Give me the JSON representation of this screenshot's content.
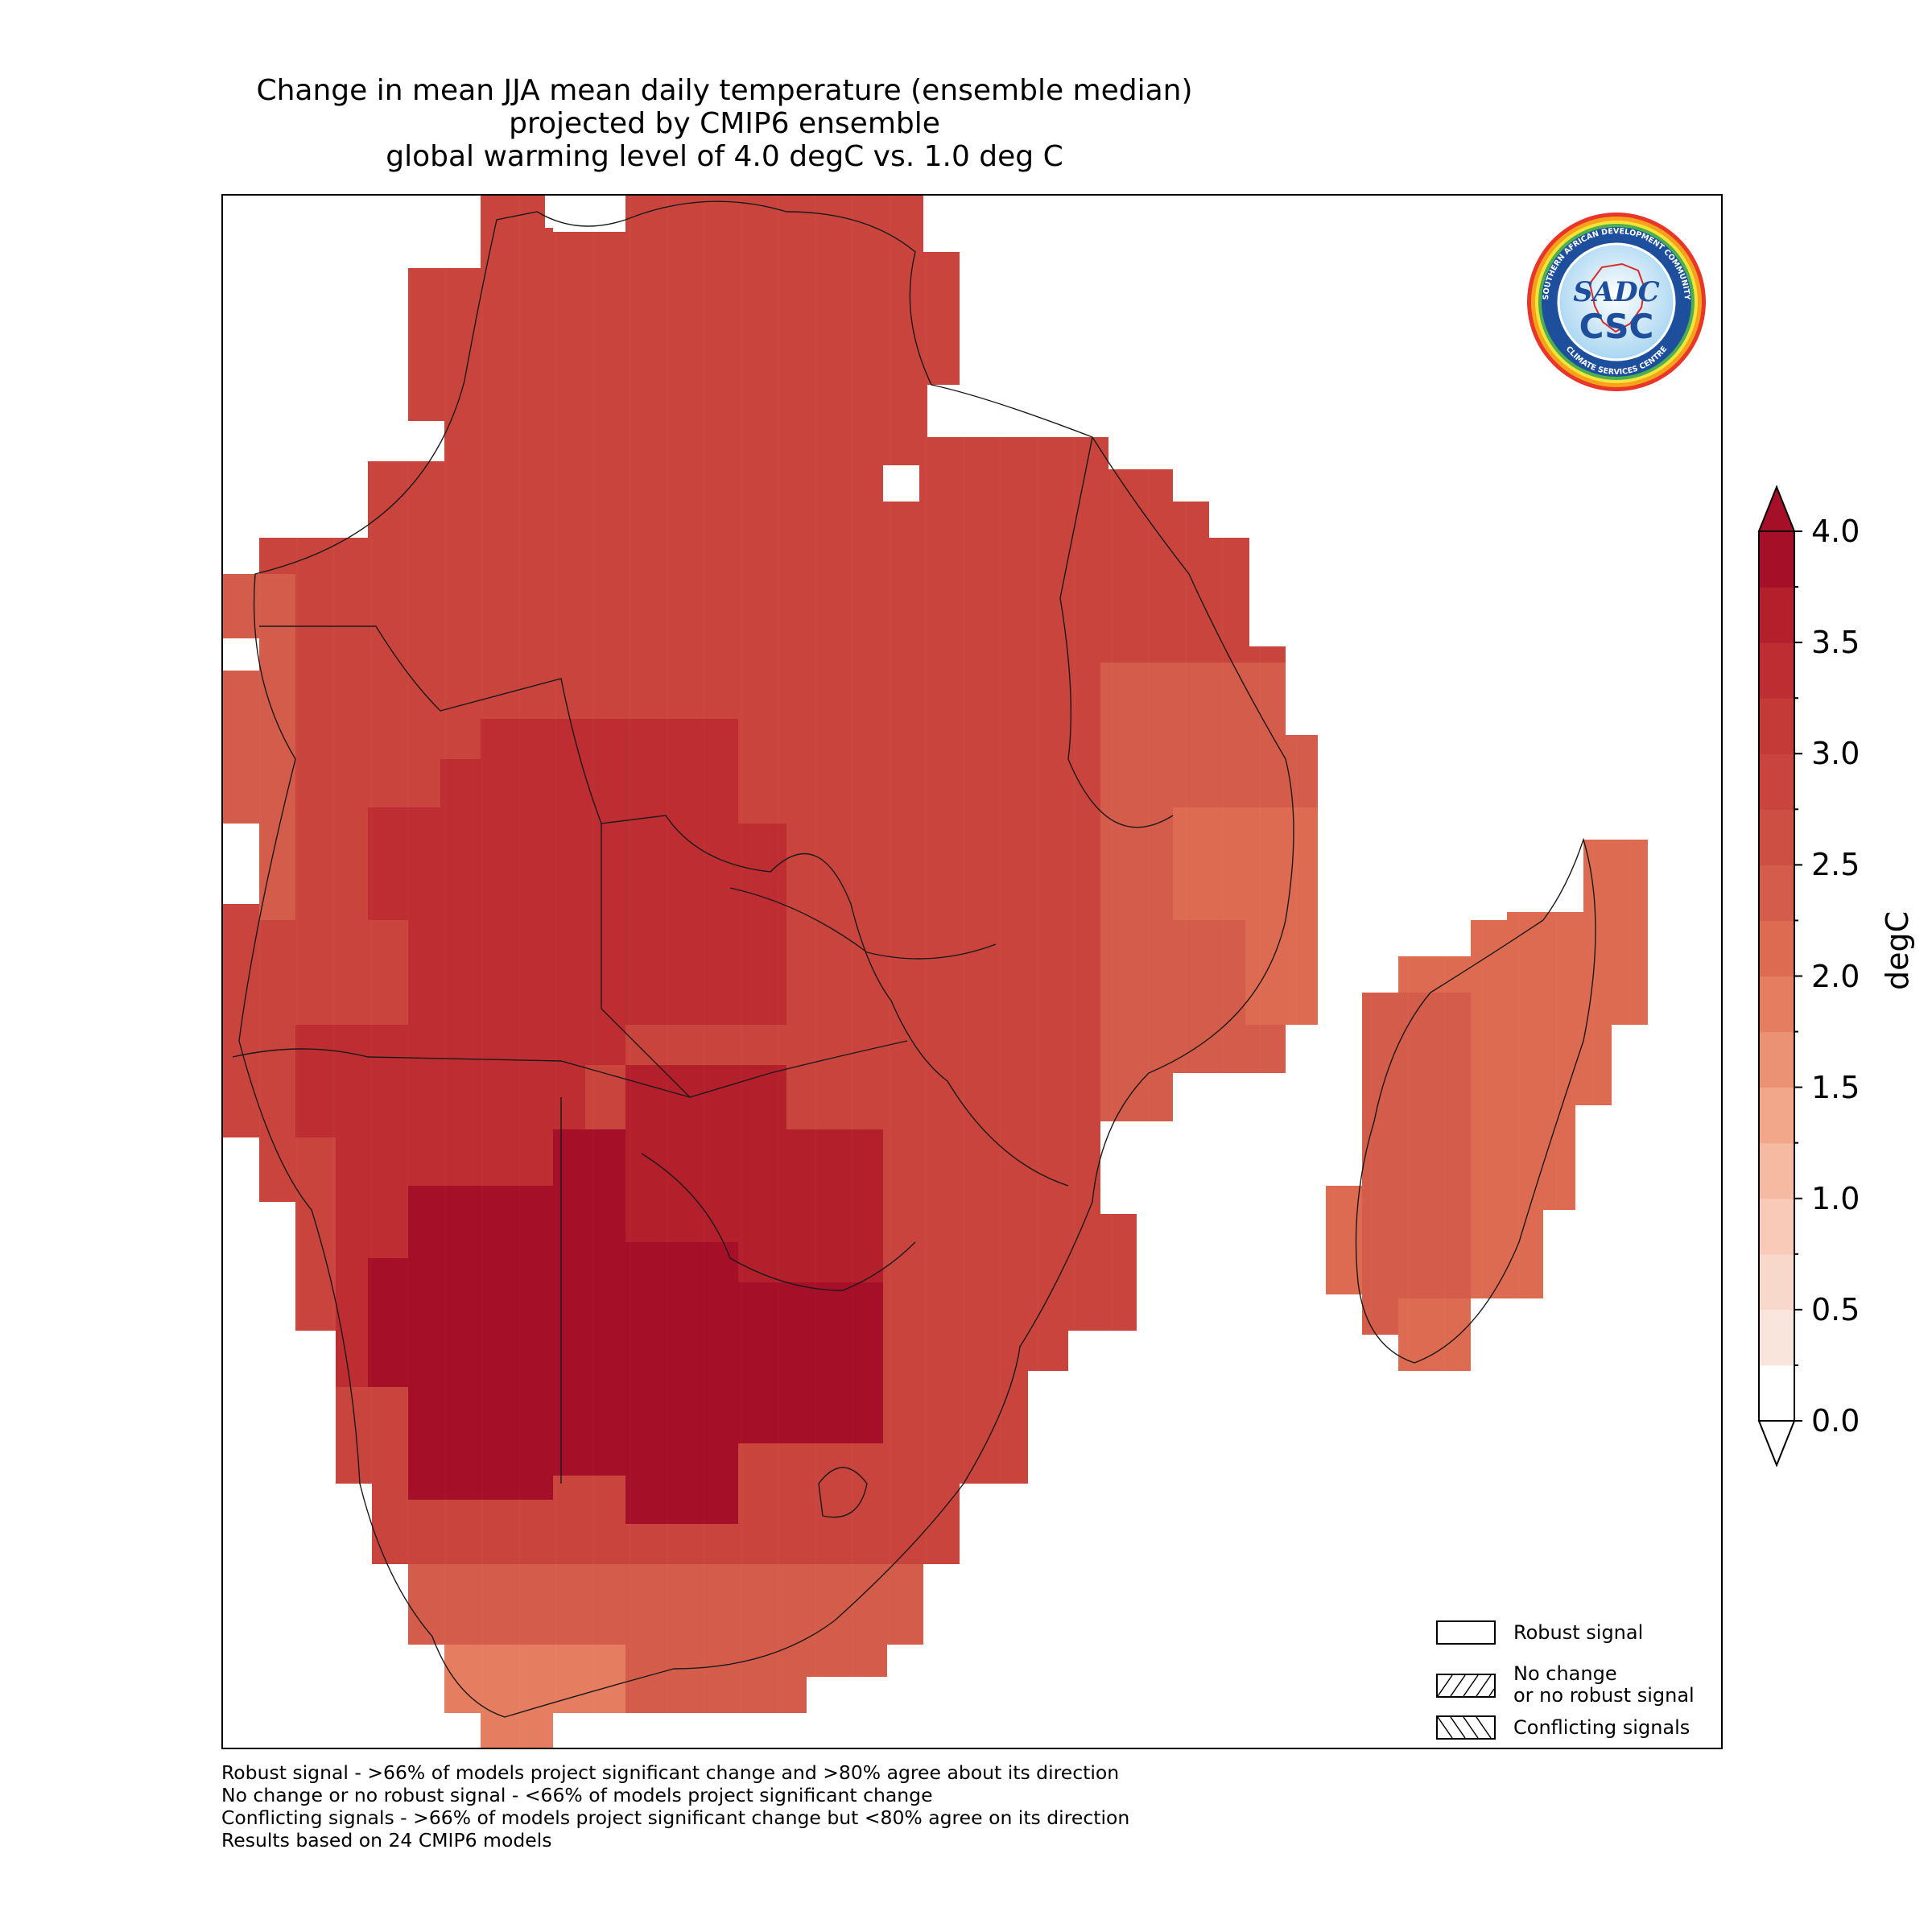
{
  "title": {
    "line1": "Change in mean JJA mean daily temperature (ensemble median)",
    "line2": "projected by CMIP6 ensemble",
    "line3": "global warming level of 4.0 degC vs. 1.0 deg C"
  },
  "logo": {
    "ring_text_top": "SOUTHERN AFRICAN DEVELOPMENT COMMUNITY",
    "ring_text_bottom": "CLIMATE SERVICES CENTRE",
    "mark_top": "SADC",
    "mark_bottom": "CSC",
    "icon": "sadc-csc-logo-icon"
  },
  "colorbar": {
    "unit": "degC",
    "min": 0.0,
    "max": 4.0,
    "ticks": [
      "0.0",
      "0.5",
      "1.0",
      "1.5",
      "2.0",
      "2.5",
      "3.0",
      "3.5",
      "4.0"
    ],
    "extend": "both",
    "levels": 16,
    "colors": [
      "#ffffff",
      "#fae5dd",
      "#f9d8cc",
      "#f8cab7",
      "#f6b9a1",
      "#f2a68a",
      "#ec9274",
      "#e57d60",
      "#dc6b51",
      "#d35c4a",
      "#cd4f43",
      "#c8443c",
      "#c33a36",
      "#bd2d31",
      "#b41f2c",
      "#a50f27"
    ]
  },
  "legend": {
    "items": [
      {
        "label": "Robust signal",
        "hatch": "none"
      },
      {
        "label": "No change",
        "label2": "or no robust signal",
        "hatch": "forward"
      },
      {
        "label": "Conflicting signals",
        "hatch": "back"
      }
    ]
  },
  "footnotes": [
    "Robust signal - >66% of models project significant change and >80% agree about its direction",
    "No change or no robust signal - <66% of models project significant change",
    "Conflicting signals - >66% of models project significant change but <80% agree on its direction",
    "Results based on 24 CMIP6 models"
  ],
  "map_grid": {
    "note_values_degC": "gridded change values, rows north to south",
    "rows": [
      "....................................",
      "........88....777777............... ",
      ".......888...7777777666............ ",
      "......8888777777777766666.......... ",
      "......8888877777777777666.......... ",
      "......88888777777777776666......... ",
      ".....888888777788777777666......... ",
      "....88888888877777777777.6666...... ",
      "....8888888888887777777776666...... ",
      "..8888888888999877777777666666..... ",
      "..88888888889998777777776666665.... ",
      ".677788888889998877777777666665.... ",
      ".6777888889999999887777777766665... ",
      ".67788889999999998877777777766665.. ",
      ".6678889999999998887777777776665... ",
      ".667888999999999988877777777766665. ",
      ".66788999999999998887777777776665.. ",
      "..6688999999999999887777777776665.. ",
      "..668999999999999888777777777665... "
    ]
  }
}
